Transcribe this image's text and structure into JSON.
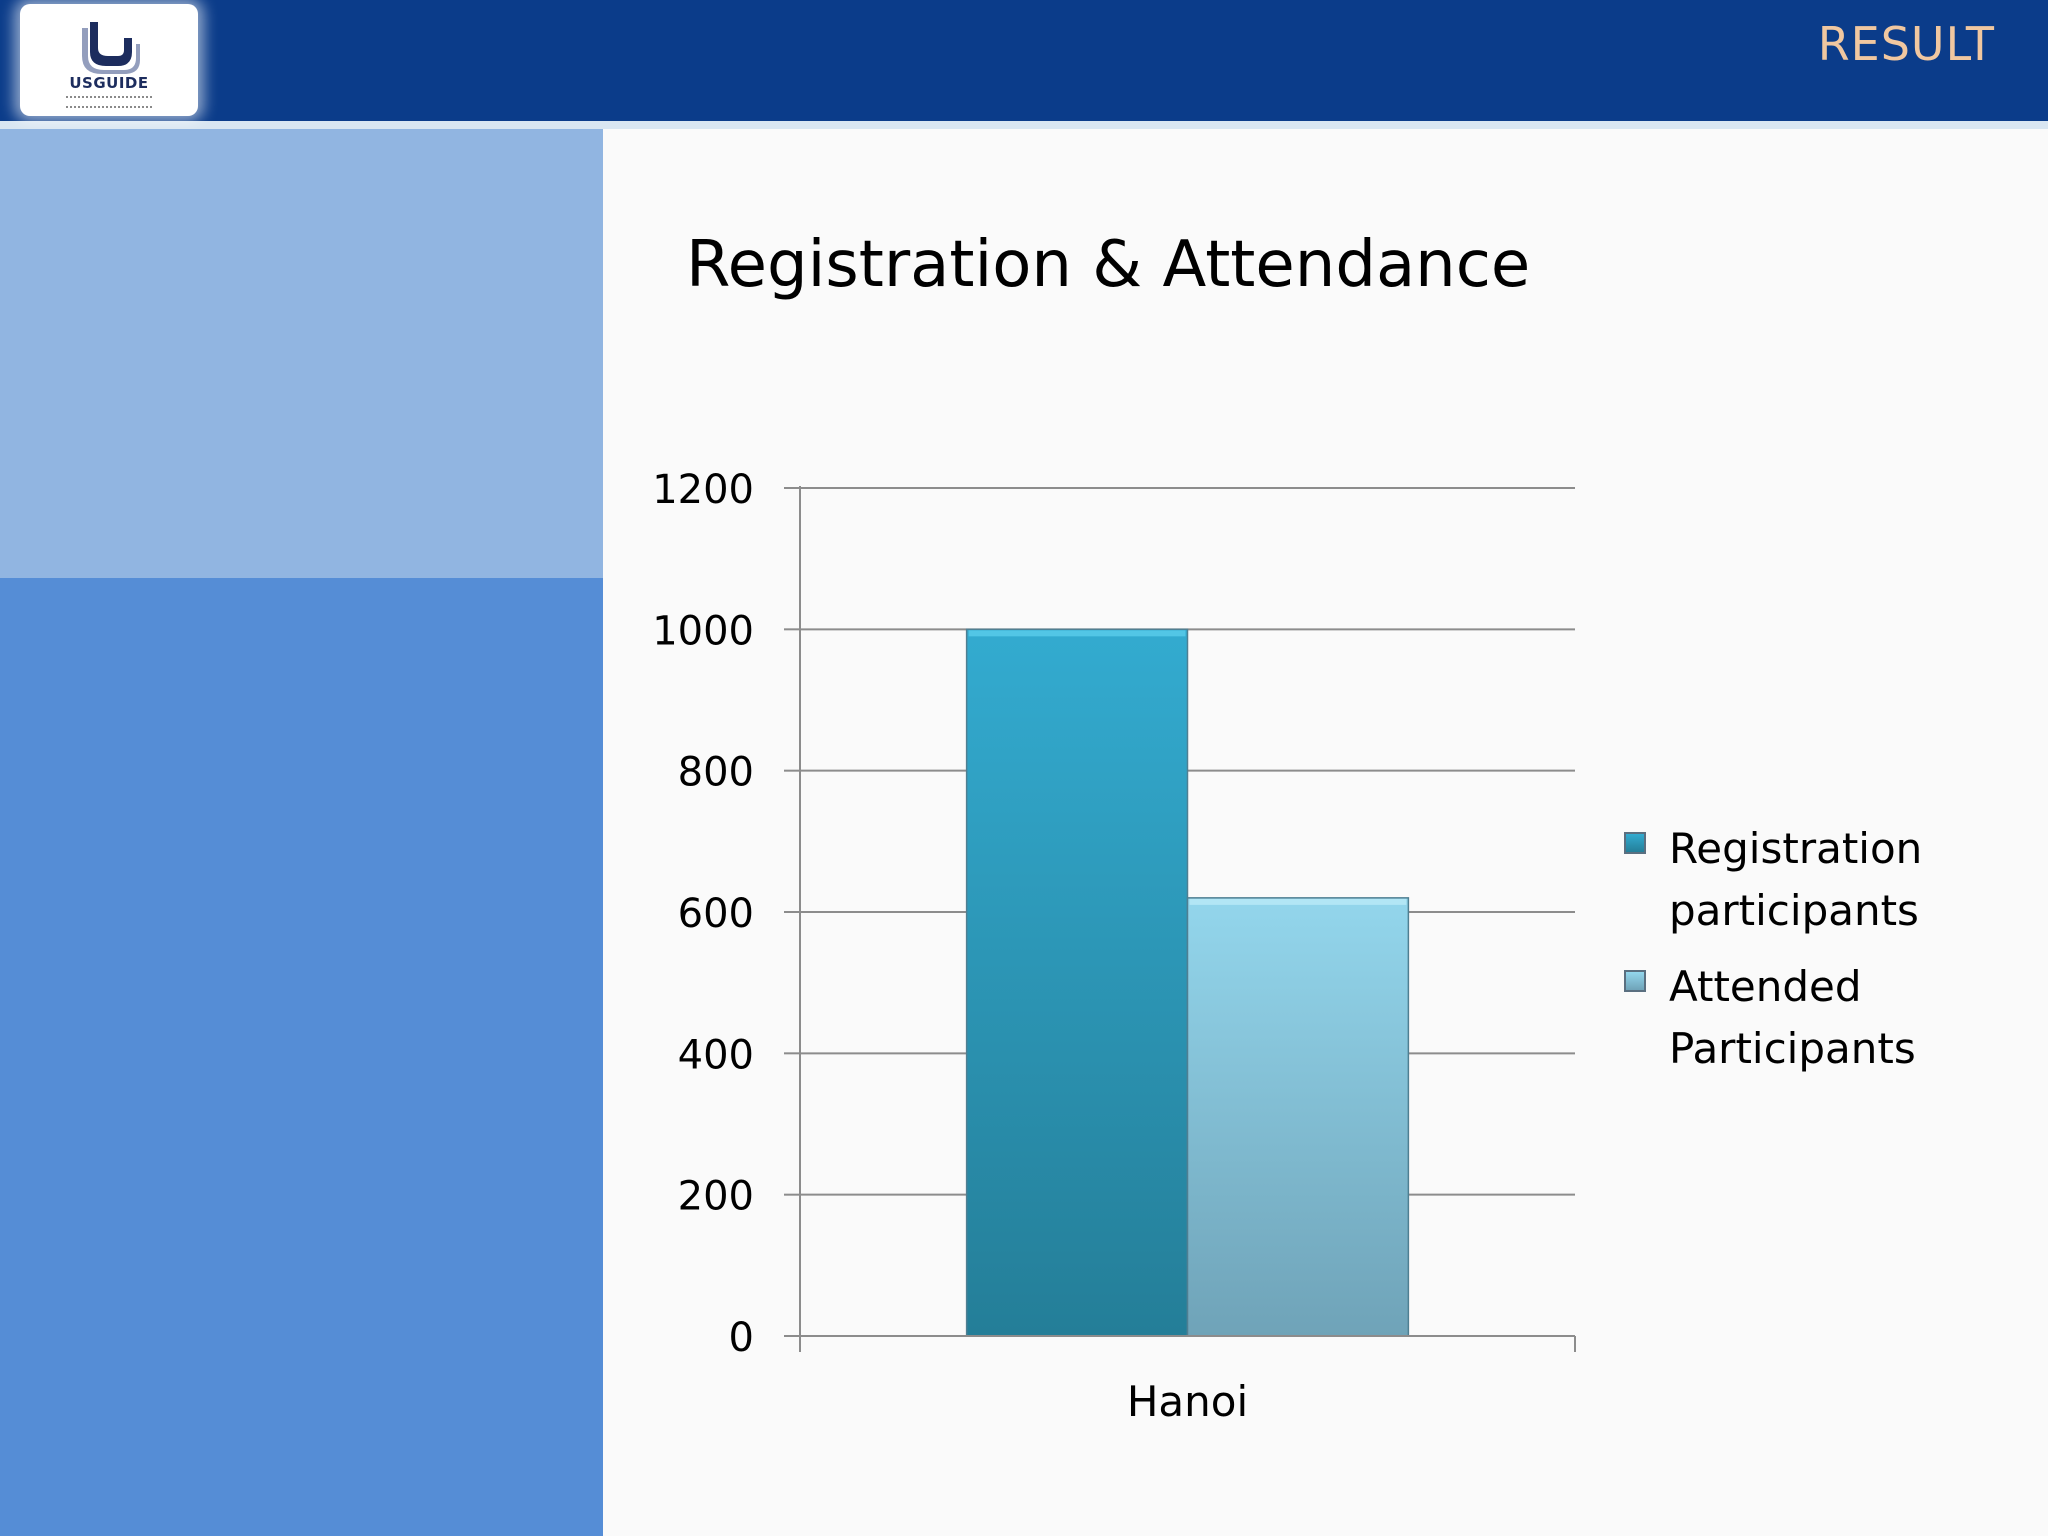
{
  "header": {
    "logo_text": "USGUIDE",
    "section_title": "RESULT"
  },
  "colors": {
    "header": "#0b3c8a",
    "sidebar_light": "#91b5e1",
    "sidebar_dark": "#558dd6",
    "series_registration": "#2f9fc1",
    "series_attended": "#8ac9df"
  },
  "chart_data": {
    "type": "bar",
    "title": "Registration & Attendance",
    "categories": [
      "Hanoi"
    ],
    "series": [
      {
        "name": "Registration participants",
        "values": [
          1000
        ]
      },
      {
        "name": "Attended Participants",
        "values": [
          620
        ]
      }
    ],
    "ylim": [
      0,
      1200
    ],
    "yticks": [
      0,
      200,
      400,
      600,
      800,
      1000,
      1200
    ],
    "xlabel": "",
    "ylabel": "",
    "grid": true,
    "legend_position": "right"
  }
}
